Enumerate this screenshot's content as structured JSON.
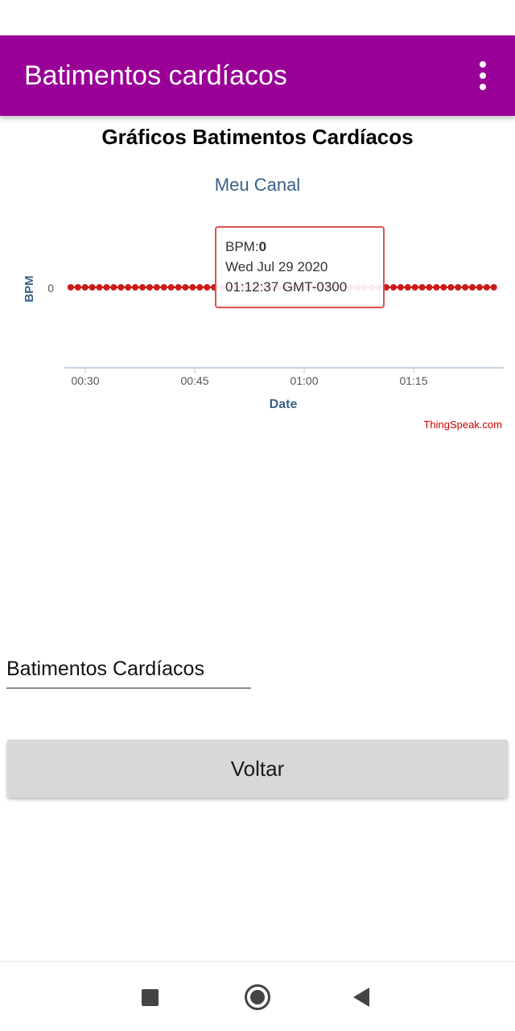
{
  "app_bar": {
    "title": "Batimentos cardíacos",
    "overflow_icon": "more-vert-icon",
    "background": "#9a0097"
  },
  "page": {
    "title": "Gráficos Batimentos Cardíacos"
  },
  "chart_data": {
    "type": "line",
    "title": "Meu Canal",
    "xlabel": "Date",
    "ylabel": "BPM",
    "x_ticks": [
      "00:30",
      "00:45",
      "01:00",
      "01:15"
    ],
    "y_ticks": [
      "0"
    ],
    "series": [
      {
        "name": "BPM",
        "color": "#cc1a1a",
        "x_range": [
          "00:28",
          "01:26"
        ],
        "point_count": 60,
        "constant_value": 0
      }
    ],
    "tooltip": {
      "label": "BPM:",
      "value": "0",
      "date": "Wed Jul 29 2020",
      "time": "01:12:37 GMT-0300"
    },
    "credit": "ThingSpeak.com",
    "grid": false
  },
  "input": {
    "value": "Batimentos Cardíacos"
  },
  "button": {
    "label": "Voltar"
  },
  "nav_bar": {
    "recent_icon": "square-recents-icon",
    "home_icon": "circle-home-icon",
    "back_icon": "triangle-back-icon"
  }
}
